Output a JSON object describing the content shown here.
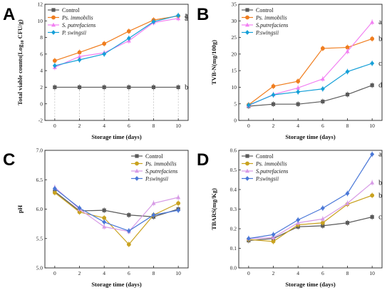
{
  "chart_data": [
    {
      "panel": "A",
      "type": "line",
      "xlabel": "Storage time (days)",
      "ylabel": "Total viable counts(Log10 CFU/g)",
      "x": [
        0,
        2,
        4,
        6,
        8,
        10
      ],
      "xlim": [
        -0.8,
        10.8
      ],
      "ylim": [
        -2,
        12
      ],
      "yticks": [
        -2,
        0,
        2,
        4,
        6,
        8,
        10,
        12
      ],
      "grid": false,
      "legend": "top-left",
      "series": [
        {
          "name": "Control",
          "color": "#5a5a5a",
          "values": [
            2.0,
            2.0,
            2.0,
            2.0,
            2.0,
            2.0
          ],
          "sig": "b"
        },
        {
          "name": "Ps. immobilis",
          "italic": true,
          "color": "#f07d1e",
          "values": [
            5.2,
            6.2,
            7.25,
            8.75,
            10.1,
            10.6
          ],
          "sig": "a"
        },
        {
          "name": "S. putrefaciens",
          "italic": true,
          "color": "#f280f2",
          "values": [
            4.4,
            5.7,
            6.15,
            7.6,
            9.8,
            10.3
          ],
          "sig": "a"
        },
        {
          "name": "P. swingsii",
          "italic": true,
          "color": "#16a0d8",
          "values": [
            4.6,
            5.3,
            6.0,
            7.9,
            9.9,
            10.65
          ],
          "sig": "a"
        }
      ]
    },
    {
      "panel": "B",
      "type": "line",
      "xlabel": "Storage time (days)",
      "ylabel": "TVB-N(mg/100g)",
      "x": [
        0,
        2,
        4,
        6,
        8,
        10
      ],
      "xlim": [
        -0.8,
        10.8
      ],
      "ylim": [
        0,
        35
      ],
      "yticks": [
        0,
        5,
        10,
        15,
        20,
        25,
        30,
        35
      ],
      "grid": false,
      "legend": "top-left",
      "series": [
        {
          "name": "Control",
          "color": "#5a5a5a",
          "values": [
            4.3,
            4.9,
            4.9,
            5.7,
            7.8,
            10.6
          ],
          "sig": "d"
        },
        {
          "name": "Ps. immobilis",
          "italic": true,
          "color": "#f07d1e",
          "values": [
            4.7,
            10.3,
            11.8,
            21.7,
            22.0,
            24.6
          ],
          "sig": "b"
        },
        {
          "name": "S.putrefaciens",
          "italic": true,
          "color": "#f280f2",
          "values": [
            4.5,
            7.8,
            9.8,
            12.5,
            20.8,
            29.6
          ],
          "sig": "a"
        },
        {
          "name": "P.swingsii",
          "italic": true,
          "color": "#16a0d8",
          "values": [
            4.6,
            7.7,
            8.6,
            9.5,
            14.7,
            17.2
          ],
          "sig": "c"
        }
      ]
    },
    {
      "panel": "C",
      "type": "line",
      "xlabel": "Storage time (days)",
      "ylabel": "pH",
      "x": [
        0,
        2,
        4,
        6,
        8,
        10
      ],
      "xlim": [
        -0.8,
        10.8
      ],
      "ylim": [
        5.0,
        7.0
      ],
      "yticks": [
        5.0,
        5.5,
        6.0,
        6.5,
        7.0
      ],
      "grid": false,
      "legend": "top-right",
      "series": [
        {
          "name": "Control",
          "color": "#5a5a5a",
          "values": [
            6.3,
            5.97,
            5.98,
            5.9,
            5.87,
            6.0
          ]
        },
        {
          "name": "Ps. immobilis",
          "italic": true,
          "color": "#c9a21f",
          "values": [
            6.28,
            5.95,
            5.85,
            5.4,
            5.9,
            6.1
          ]
        },
        {
          "name": "S.putrefaciens",
          "italic": true,
          "color": "#d79be6",
          "values": [
            6.37,
            6.0,
            5.7,
            5.62,
            6.1,
            6.2
          ]
        },
        {
          "name": "P.swingsii",
          "italic": true,
          "color": "#4a78d8",
          "values": [
            6.35,
            6.02,
            5.78,
            5.63,
            5.9,
            5.98
          ]
        }
      ]
    },
    {
      "panel": "D",
      "type": "line",
      "xlabel": "Storage time (days)",
      "ylabel": "TBARS(mg/Kg)",
      "x": [
        0,
        2,
        4,
        6,
        8,
        10
      ],
      "xlim": [
        -0.8,
        10.8
      ],
      "ylim": [
        0.0,
        0.6
      ],
      "yticks": [
        0.0,
        0.1,
        0.2,
        0.3,
        0.4,
        0.5,
        0.6
      ],
      "grid": false,
      "legend": "top-left",
      "series": [
        {
          "name": "Control",
          "color": "#5a5a5a",
          "values": [
            0.14,
            0.15,
            0.21,
            0.215,
            0.23,
            0.26
          ],
          "sig": "c"
        },
        {
          "name": "Ps. immobilis",
          "italic": true,
          "color": "#c9a21f",
          "values": [
            0.145,
            0.135,
            0.22,
            0.23,
            0.325,
            0.37
          ],
          "sig": "b"
        },
        {
          "name": "S.putrefaciens",
          "italic": true,
          "color": "#d79be6",
          "values": [
            0.15,
            0.155,
            0.23,
            0.25,
            0.33,
            0.435
          ],
          "sig": "b"
        },
        {
          "name": "P.swingsii",
          "italic": true,
          "color": "#4a78d8",
          "values": [
            0.15,
            0.17,
            0.245,
            0.305,
            0.38,
            0.58
          ],
          "sig": "a"
        }
      ]
    }
  ]
}
